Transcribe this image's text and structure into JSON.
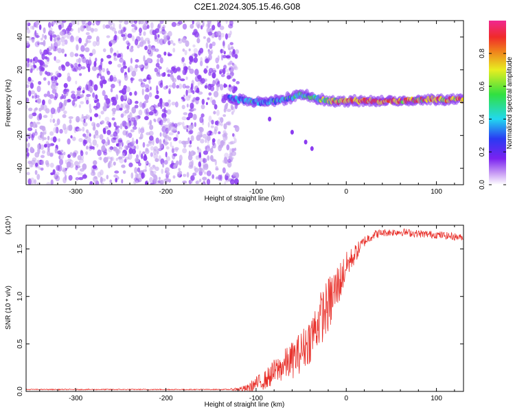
{
  "title": "C2E1.2024.305.15.46.G08",
  "colors": {
    "snr_line": "#e8302a",
    "spectrogram_bg": "#ffffff",
    "ridge": [
      "#c7a8f0",
      "#8b3cf0",
      "#3048f0",
      "#26d0f0",
      "#40e050",
      "#f0e020",
      "#f03030"
    ]
  },
  "chart_data": [
    {
      "type": "heatmap",
      "xlabel": "Height of straight line (km)",
      "ylabel": "Frequency (Hz)",
      "xlim": [
        -355,
        130
      ],
      "ylim": [
        -50,
        50
      ],
      "xticks": [
        -300,
        -200,
        -100,
        0,
        100
      ],
      "xtick_labels": [
        "-300",
        "-200",
        "-100",
        "0",
        "100"
      ],
      "yticks": [
        40,
        20,
        0,
        -20,
        -40
      ],
      "ytick_labels": [
        "40",
        "20",
        "0",
        "-20",
        "-40"
      ],
      "colorbar": {
        "label": "Normalized spectral amplitude",
        "range": [
          0,
          1
        ],
        "ticks": [
          0.0,
          0.2,
          0.4,
          0.6,
          0.8
        ],
        "tick_labels": [
          "0.0",
          "0.2",
          "0.4",
          "0.6",
          "0.8"
        ],
        "colormap": "rainbow"
      },
      "features": {
        "noise_region_x": [
          -355,
          -120
        ],
        "signal_ridge": {
          "x": [
            -130,
            -110,
            -90,
            -70,
            -50,
            -35,
            -20,
            0,
            30,
            60,
            90,
            130
          ],
          "y": [
            3,
            1,
            0,
            2,
            5,
            3,
            1,
            1,
            1,
            1,
            2,
            2
          ],
          "amplitude": [
            0.35,
            0.45,
            0.4,
            0.45,
            0.55,
            0.6,
            0.75,
            0.9,
            0.95,
            0.9,
            0.85,
            0.9
          ]
        },
        "dispersed_tail": {
          "x": [
            -85,
            -60,
            -45,
            -38
          ],
          "y": [
            -10,
            -18,
            -24,
            -28
          ]
        }
      }
    },
    {
      "type": "line",
      "xlabel": "Height of straight line (km)",
      "ylabel": "SNR (10 * v/v)",
      "scale_note": "(x10⁴)",
      "xlim": [
        -355,
        130
      ],
      "ylim": [
        0,
        1.75
      ],
      "xticks": [
        -300,
        -200,
        -100,
        0,
        100
      ],
      "xtick_labels": [
        "-300",
        "-200",
        "-100",
        "0",
        "100"
      ],
      "yticks": [
        0.0,
        0.5,
        1.0,
        1.5
      ],
      "ytick_labels": [
        "0.0",
        "0.5",
        "1.0",
        "1.5"
      ],
      "series": [
        {
          "x": [
            -355,
            -300,
            -200,
            -130,
            -110,
            -100,
            -90,
            -80,
            -70,
            -60,
            -50,
            -40,
            -30,
            -20,
            -15,
            -10,
            -5,
            0,
            10,
            20,
            30,
            40,
            60,
            80,
            100,
            120,
            130
          ],
          "y": [
            0.02,
            0.02,
            0.02,
            0.02,
            0.03,
            0.08,
            0.12,
            0.2,
            0.27,
            0.33,
            0.42,
            0.55,
            0.75,
            0.9,
            1.0,
            1.1,
            1.2,
            1.32,
            1.45,
            1.58,
            1.65,
            1.67,
            1.68,
            1.66,
            1.65,
            1.63,
            1.62
          ],
          "jitter": [
            0.005,
            0.005,
            0.005,
            0.005,
            0.04,
            0.08,
            0.1,
            0.14,
            0.16,
            0.2,
            0.22,
            0.25,
            0.28,
            0.3,
            0.3,
            0.25,
            0.2,
            0.15,
            0.1,
            0.06,
            0.05,
            0.04,
            0.04,
            0.04,
            0.04,
            0.04,
            0.03
          ]
        }
      ]
    }
  ]
}
